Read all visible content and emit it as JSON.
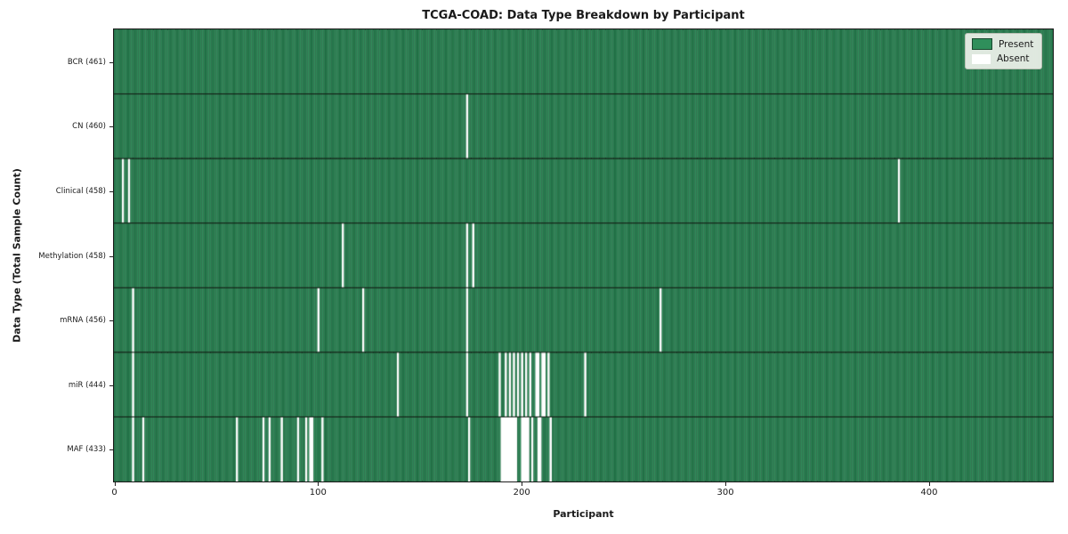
{
  "title": "TCGA-COAD: Data Type Breakdown by Participant",
  "xlabel": "Participant",
  "ylabel": "Data Type (Total Sample Count)",
  "legend": {
    "present_label": "Present",
    "absent_label": "Absent"
  },
  "colors": {
    "present": "#2f8f5b",
    "present_edge": "#17482e",
    "absent": "#ffffff",
    "row_separator": "#101810",
    "frame": "#1c1c1c"
  },
  "chart_data": {
    "type": "heatmap",
    "title": "TCGA-COAD: Data Type Breakdown by Participant",
    "xlabel": "Participant",
    "ylabel": "Data Type (Total Sample Count)",
    "legend_entries": [
      "Present",
      "Absent"
    ],
    "legend_position": "upper right",
    "n_participants": 461,
    "xlim": [
      0,
      461
    ],
    "x_ticks": [
      0,
      100,
      200,
      300,
      400
    ],
    "rows": [
      {
        "label": "BCR",
        "count": 461,
        "absent": []
      },
      {
        "label": "CN",
        "count": 460,
        "absent": [
          173
        ]
      },
      {
        "label": "Clinical",
        "count": 458,
        "absent": [
          4,
          7,
          385
        ]
      },
      {
        "label": "Methylation",
        "count": 458,
        "absent": [
          112,
          173,
          176
        ]
      },
      {
        "label": "mRNA",
        "count": 456,
        "absent": [
          9,
          100,
          122,
          173,
          268
        ]
      },
      {
        "label": "miR",
        "count": 444,
        "absent": [
          9,
          139,
          173,
          189,
          192,
          194,
          196,
          198,
          200,
          202,
          204,
          207,
          208,
          210,
          211,
          213,
          231
        ]
      },
      {
        "label": "MAF",
        "count": 433,
        "absent": [
          9,
          14,
          60,
          73,
          76,
          82,
          90,
          94,
          96,
          97,
          102,
          174,
          190,
          191,
          192,
          193,
          194,
          195,
          196,
          197,
          200,
          201,
          202,
          203,
          205,
          208,
          209,
          214
        ]
      }
    ]
  }
}
